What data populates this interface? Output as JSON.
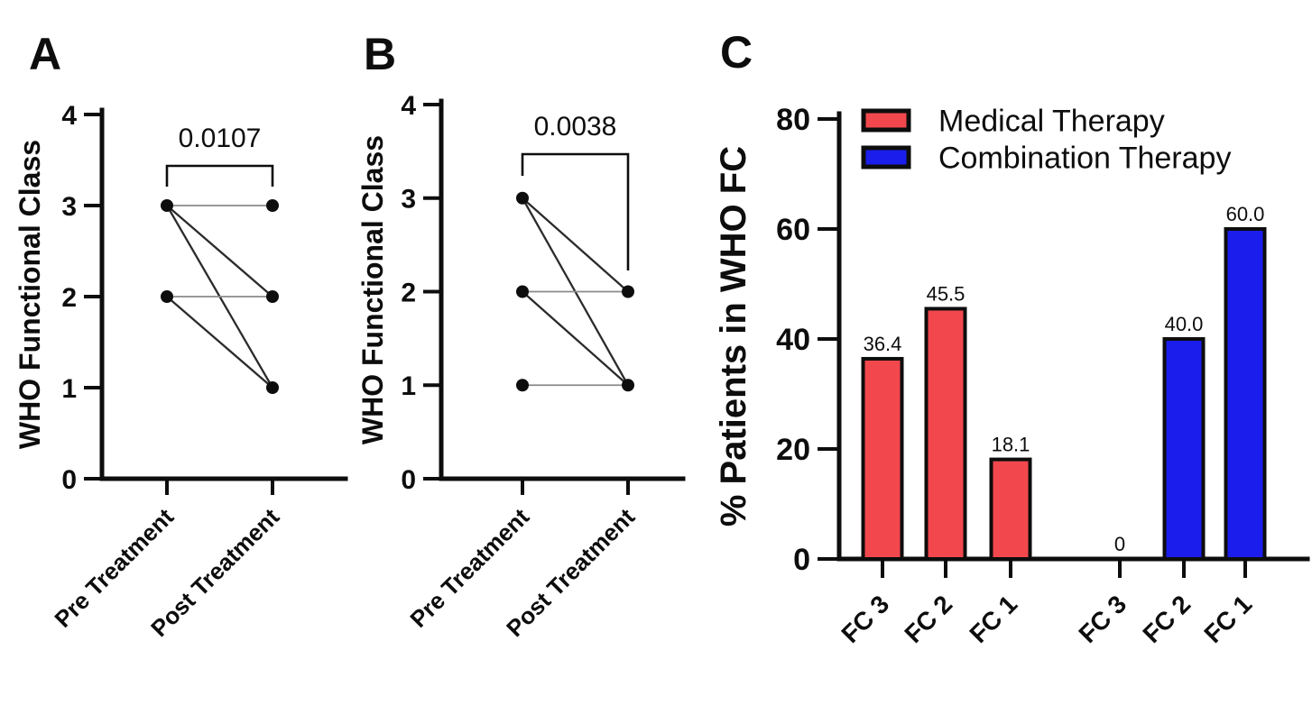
{
  "figure": {
    "background": "#ffffff",
    "panels": {
      "A": {
        "label": "A"
      },
      "B": {
        "label": "B"
      },
      "C": {
        "label": "C"
      }
    }
  },
  "colors": {
    "medical_red": "#f2484d",
    "combination_blue": "#1b1ded",
    "axis_black": "#0d0d0d",
    "flat_line_gray": "#8a8a8a"
  },
  "chart_data": [
    {
      "panel": "A",
      "type": "line",
      "subtype": "paired-before-after",
      "title": "",
      "ylabel": "WHO Functional Class",
      "xlabel": "",
      "ylim": [
        0,
        4
      ],
      "yticks": [
        0,
        1,
        2,
        3,
        4
      ],
      "categories": [
        "Pre Treatment",
        "Post Treatment"
      ],
      "pairs": [
        [
          3,
          3
        ],
        [
          3,
          2
        ],
        [
          3,
          1
        ],
        [
          2,
          2
        ],
        [
          2,
          1
        ]
      ],
      "p_value": "0.0107",
      "grid": false,
      "marker": "filled-circle"
    },
    {
      "panel": "B",
      "type": "line",
      "subtype": "paired-before-after",
      "title": "",
      "ylabel": "WHO Functional Class",
      "xlabel": "",
      "ylim": [
        0,
        4
      ],
      "yticks": [
        0,
        1,
        2,
        3,
        4
      ],
      "categories": [
        "Pre Treatment",
        "Post Treatment"
      ],
      "pairs": [
        [
          3,
          2
        ],
        [
          3,
          1
        ],
        [
          2,
          2
        ],
        [
          2,
          1
        ],
        [
          1,
          1
        ]
      ],
      "p_value": "0.0038",
      "grid": false,
      "marker": "filled-circle"
    },
    {
      "panel": "C",
      "type": "bar",
      "title": "",
      "ylabel": "% Patients in WHO FC",
      "xlabel": "",
      "ylim": [
        0,
        80
      ],
      "yticks": [
        0,
        20,
        40,
        60,
        80
      ],
      "categories": [
        "FC 3",
        "FC 2",
        "FC 1",
        "FC 3",
        "FC 2",
        "FC 1"
      ],
      "series": [
        {
          "name": "Medical Therapy",
          "color": "#f2484d",
          "categories": [
            "FC 3",
            "FC 2",
            "FC 1"
          ],
          "values": [
            36.4,
            45.5,
            18.1
          ],
          "value_labels": [
            "36.4",
            "45.5",
            "18.1"
          ]
        },
        {
          "name": "Combination Therapy",
          "color": "#1b1ded",
          "categories": [
            "FC 3",
            "FC 2",
            "FC 1"
          ],
          "values": [
            0,
            40.0,
            60.0
          ],
          "value_labels": [
            "0",
            "40.0",
            "60.0"
          ]
        }
      ],
      "legend_position": "top-inside",
      "grid": false
    }
  ]
}
